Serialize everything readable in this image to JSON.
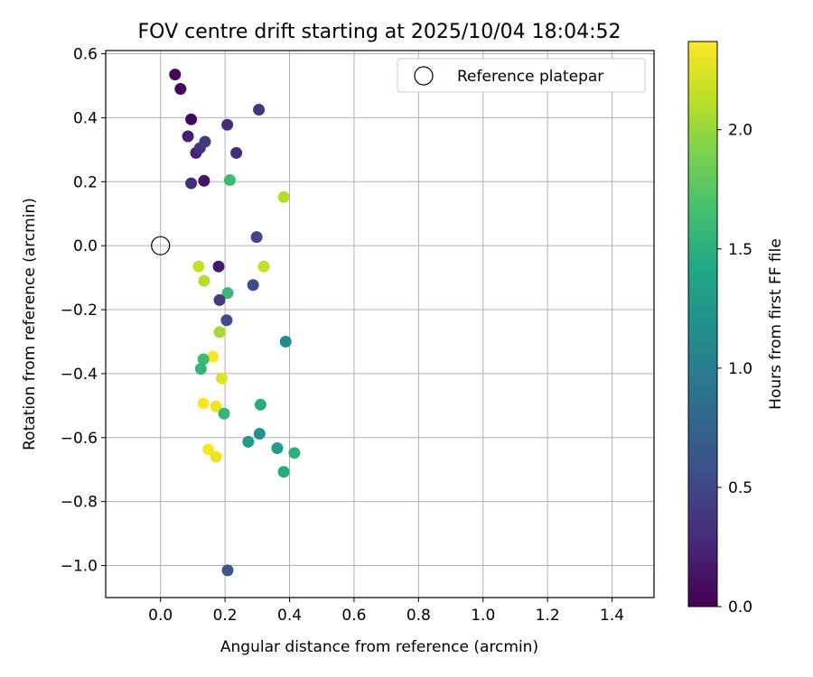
{
  "chart_data": {
    "type": "scatter",
    "title": "FOV centre drift starting at 2025/10/04 18:04:52",
    "xlabel": "Angular distance from reference (arcmin)",
    "ylabel": "Rotation from reference (arcmin)",
    "xlim": [
      -0.17,
      1.53
    ],
    "ylim": [
      -1.1,
      0.61
    ],
    "xticks": [
      0.0,
      0.2,
      0.4,
      0.6,
      0.8,
      1.0,
      1.2,
      1.4
    ],
    "xtick_labels": [
      "0.0",
      "0.2",
      "0.4",
      "0.6",
      "0.8",
      "1.0",
      "1.2",
      "1.4"
    ],
    "yticks": [
      0.6,
      0.4,
      0.2,
      0.0,
      -0.2,
      -0.4,
      -0.6,
      -0.8,
      -1.0
    ],
    "ytick_labels": [
      "0.6",
      "0.4",
      "0.2",
      "0.0",
      "−0.2",
      "−0.4",
      "−0.6",
      "−0.8",
      "−1.0"
    ],
    "grid": true,
    "legend": {
      "position": "top-right",
      "entries": [
        "Reference platepar"
      ]
    },
    "reference_point": {
      "x": 0.0,
      "y": 0.0,
      "label": "Reference platepar"
    },
    "colorbar": {
      "label": "Hours from first FF file",
      "colormap": "viridis",
      "range": [
        0.0,
        2.37
      ],
      "ticks": [
        0.0,
        0.5,
        1.0,
        1.5,
        2.0
      ],
      "tick_labels": [
        "0.0",
        "0.5",
        "1.0",
        "1.5",
        "2.0"
      ]
    },
    "points": [
      {
        "x": 0.045,
        "y": 0.535,
        "hours": 0.02
      },
      {
        "x": 0.062,
        "y": 0.49,
        "hours": 0.03
      },
      {
        "x": 0.095,
        "y": 0.395,
        "hours": 0.05
      },
      {
        "x": 0.085,
        "y": 0.342,
        "hours": 0.2
      },
      {
        "x": 0.11,
        "y": 0.29,
        "hours": 0.22
      },
      {
        "x": 0.122,
        "y": 0.305,
        "hours": 0.35
      },
      {
        "x": 0.138,
        "y": 0.325,
        "hours": 0.4
      },
      {
        "x": 0.095,
        "y": 0.195,
        "hours": 0.3
      },
      {
        "x": 0.135,
        "y": 0.203,
        "hours": 0.12
      },
      {
        "x": 0.207,
        "y": 0.378,
        "hours": 0.3
      },
      {
        "x": 0.305,
        "y": 0.425,
        "hours": 0.35
      },
      {
        "x": 0.235,
        "y": 0.29,
        "hours": 0.3
      },
      {
        "x": 0.215,
        "y": 0.205,
        "hours": 1.6
      },
      {
        "x": 0.382,
        "y": 0.152,
        "hours": 2.1
      },
      {
        "x": 0.298,
        "y": 0.027,
        "hours": 0.5
      },
      {
        "x": 0.118,
        "y": -0.065,
        "hours": 2.15
      },
      {
        "x": 0.18,
        "y": -0.065,
        "hours": 0.15
      },
      {
        "x": 0.32,
        "y": -0.065,
        "hours": 2.15
      },
      {
        "x": 0.135,
        "y": -0.11,
        "hours": 2.1
      },
      {
        "x": 0.208,
        "y": -0.148,
        "hours": 1.6
      },
      {
        "x": 0.183,
        "y": -0.17,
        "hours": 0.4
      },
      {
        "x": 0.287,
        "y": -0.123,
        "hours": 0.55
      },
      {
        "x": 0.205,
        "y": -0.233,
        "hours": 0.55
      },
      {
        "x": 0.183,
        "y": -0.27,
        "hours": 2.05
      },
      {
        "x": 0.388,
        "y": -0.3,
        "hours": 1.15
      },
      {
        "x": 0.162,
        "y": -0.347,
        "hours": 2.35
      },
      {
        "x": 0.133,
        "y": -0.355,
        "hours": 1.6
      },
      {
        "x": 0.125,
        "y": -0.385,
        "hours": 1.55
      },
      {
        "x": 0.19,
        "y": -0.415,
        "hours": 2.25
      },
      {
        "x": 0.133,
        "y": -0.493,
        "hours": 2.35
      },
      {
        "x": 0.172,
        "y": -0.503,
        "hours": 2.3
      },
      {
        "x": 0.197,
        "y": -0.525,
        "hours": 1.55
      },
      {
        "x": 0.31,
        "y": -0.497,
        "hours": 1.45
      },
      {
        "x": 0.307,
        "y": -0.588,
        "hours": 1.2
      },
      {
        "x": 0.272,
        "y": -0.613,
        "hours": 1.3
      },
      {
        "x": 0.362,
        "y": -0.633,
        "hours": 1.3
      },
      {
        "x": 0.415,
        "y": -0.648,
        "hours": 1.5
      },
      {
        "x": 0.148,
        "y": -0.637,
        "hours": 2.35
      },
      {
        "x": 0.172,
        "y": -0.66,
        "hours": 2.3
      },
      {
        "x": 0.382,
        "y": -0.707,
        "hours": 1.45
      },
      {
        "x": 0.208,
        "y": -1.015,
        "hours": 0.65
      }
    ]
  }
}
